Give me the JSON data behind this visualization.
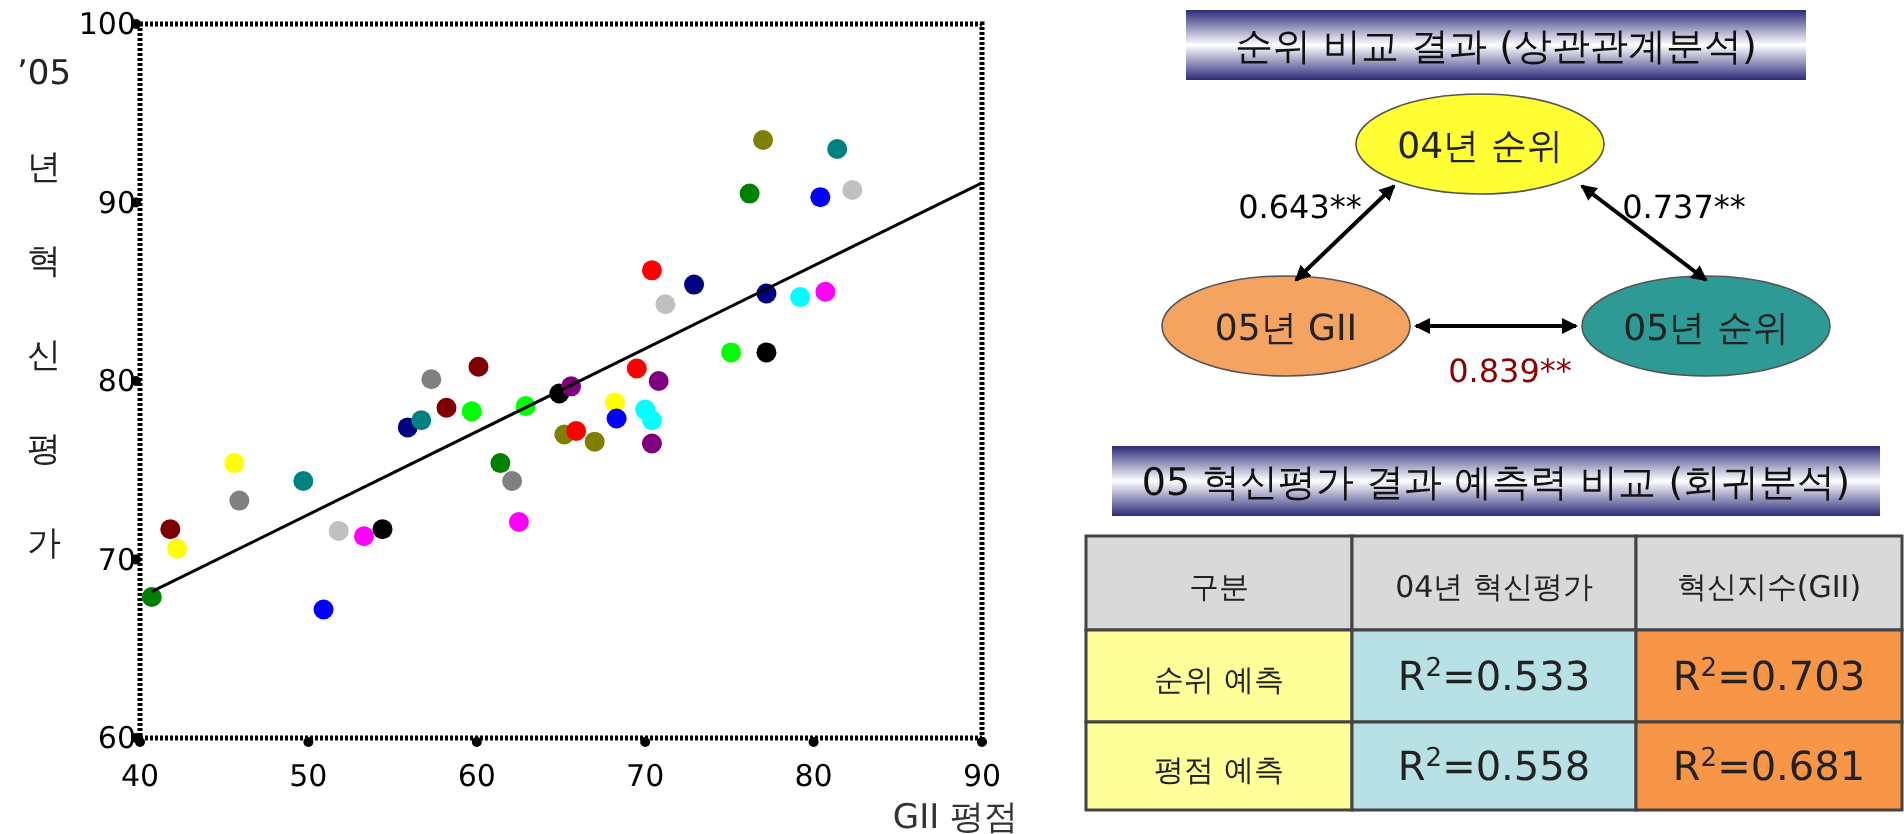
{
  "chart_data": [
    {
      "type": "scatter",
      "xlabel": "GII 평점",
      "ylabel": "’05년혁신평가",
      "xlim": [
        40,
        90
      ],
      "ylim": [
        60,
        100
      ],
      "xticks": [
        40,
        50,
        60,
        70,
        80,
        90
      ],
      "yticks": [
        60,
        70,
        80,
        90,
        100
      ],
      "series": [
        {
          "type": "scatter",
          "marker": "circle",
          "x": [
            40.7,
            41.8,
            42.2,
            45.6,
            45.9,
            49.7,
            50.9,
            51.8,
            53.3,
            54.4,
            55.9,
            56.7,
            57.3,
            58.2,
            59.7,
            60.1,
            61.4,
            62.1,
            62.5,
            62.9,
            64.9,
            65.6,
            65.2,
            65.9,
            67.0,
            68.2,
            68.3,
            70.0,
            70.4,
            70.4,
            69.5,
            70.8,
            77.0,
            81.4,
            76.2,
            80.4,
            82.3,
            70.4,
            72.9,
            71.2,
            77.2,
            79.2,
            80.7,
            75.1,
            77.2
          ],
          "values": [
            67.9,
            71.7,
            70.6,
            75.4,
            73.3,
            74.4,
            67.2,
            71.6,
            71.3,
            71.7,
            77.4,
            77.8,
            80.1,
            78.5,
            78.3,
            80.8,
            75.4,
            74.4,
            72.1,
            78.6,
            79.3,
            79.7,
            77.0,
            77.2,
            76.6,
            78.8,
            77.9,
            78.4,
            77.8,
            76.5,
            80.7,
            80.0,
            93.5,
            93.0,
            90.5,
            90.3,
            90.7,
            86.2,
            85.4,
            84.3,
            84.9,
            84.7,
            85.0,
            81.6,
            81.6
          ],
          "colors": [
            "#008000",
            "#800000",
            "#ffff00",
            "#ffff00",
            "#808080",
            "#008080",
            "#0000ff",
            "#c0c0c0",
            "#ff00ff",
            "#000000",
            "#000080",
            "#008080",
            "#808080",
            "#800000",
            "#00ff00",
            "#800000",
            "#008000",
            "#808080",
            "#ff00ff",
            "#00ff00",
            "#000000",
            "#800080",
            "#808000",
            "#ff0000",
            "#808000",
            "#ffff00",
            "#0000ff",
            "#00ffff",
            "#00ffff",
            "#800080",
            "#ff0000",
            "#800080",
            "#808000",
            "#008080",
            "#008000",
            "#0000ff",
            "#c0c0c0",
            "#ff0000",
            "#000080",
            "#c0c0c0",
            "#000080",
            "#00ffff",
            "#ff00ff",
            "#00ff00",
            "#000000"
          ]
        },
        {
          "type": "line",
          "x": [
            40.7,
            90
          ],
          "values": [
            68.2,
            91.1
          ],
          "color": "#000000"
        }
      ]
    },
    {
      "type": "other",
      "title": "순위 비교 결과 (상관관계분석)",
      "categories": [
        "04년 순위",
        "05년 GII",
        "05년 순위"
      ],
      "colors": [
        "#ffff33",
        "#f4a460",
        "#2e9a96"
      ],
      "annotations": [
        "0.643**",
        "0.737**",
        "0.839**"
      ]
    },
    {
      "type": "other",
      "title": "05 혁신평가 결과 예측력 비교 (회귀분석)",
      "ylabel": "구분",
      "categories": [
        "04년 혁신평가",
        "혁신지수(GII)"
      ],
      "y_categories": [
        "순위 예측",
        "평점 예측"
      ],
      "cell_labels": [
        [
          "R$^{2}$=0.533",
          "R$^{2}$=0.703"
        ],
        [
          "R$^{2}$=0.558",
          "R$^{2}$=0.681"
        ]
      ]
    }
  ]
}
